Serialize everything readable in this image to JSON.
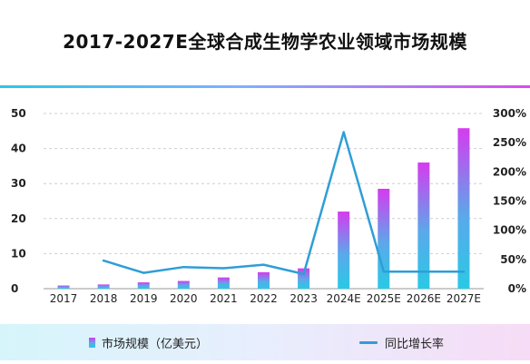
{
  "chart_data": {
    "type": "bar",
    "title": "2017-2027E全球合成生物学农业领域市场规模",
    "categories": [
      "2017",
      "2018",
      "2019",
      "2020",
      "2021",
      "2022",
      "2023",
      "2024E",
      "2025E",
      "2026E",
      "2027E"
    ],
    "series": [
      {
        "name": "市场规模（亿美元）",
        "type": "bar",
        "axis": "left",
        "values": [
          0.9,
          1.2,
          1.8,
          2.2,
          3.2,
          4.7,
          5.8,
          22,
          28.5,
          36,
          45.8
        ]
      },
      {
        "name": "同比增长率",
        "type": "line",
        "axis": "right",
        "values": [
          null,
          48,
          27,
          37,
          35,
          41,
          25,
          268,
          29,
          29,
          29
        ]
      }
    ],
    "y_left": {
      "ticks": [
        "0",
        "10",
        "20",
        "30",
        "40",
        "50"
      ],
      "ylim": [
        0,
        50
      ]
    },
    "y_right": {
      "ticks": [
        "0%",
        "50%",
        "100%",
        "150%",
        "200%",
        "250%",
        "300%"
      ],
      "ylim": [
        0,
        300
      ]
    },
    "grid": true,
    "legend_position": "bottom",
    "colors": {
      "bar_top": "#d63bef",
      "bar_mid": "#5aa9ea",
      "bar_bottom": "#29c9e6",
      "line": "#2f9ed6",
      "grid": "#cfcfcf"
    }
  }
}
